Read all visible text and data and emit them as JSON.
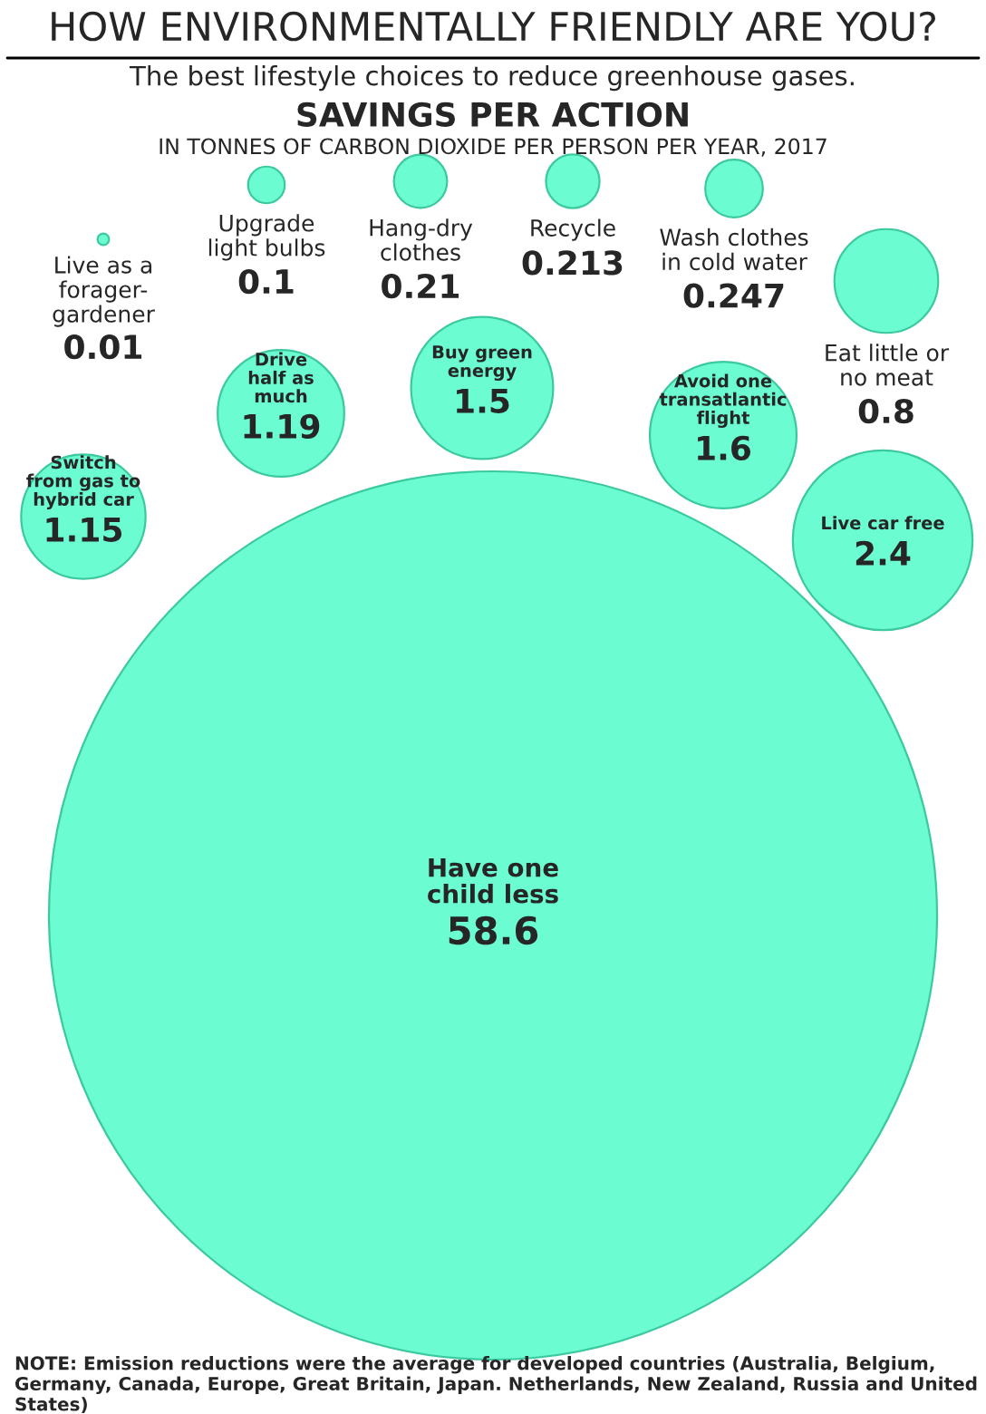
{
  "chart_data": {
    "type": "other",
    "title": "HOW ENVIRONMENTALLY FRIENDLY ARE YOU?",
    "subtitle": "The best lifestyle choices to reduce greenhouse gases.",
    "categories": [
      "Live as a\nforager-\ngardener",
      "Upgrade\nlight bulbs",
      "Hang-dry\nclothes",
      "Recycle",
      "Wash clothes\nin cold water",
      "Eat little or\nno meat",
      "Drive\nhalf as\nmuch",
      "Buy green\nenergy",
      "Avoid one\ntransatlantic\nflight",
      "Switch\nfrom gas to\nhybrid car",
      "Live car free",
      "Have one\nchild less"
    ],
    "values": [
      0.01,
      0.1,
      0.21,
      0.213,
      0.247,
      0.8,
      1.19,
      1.5,
      1.6,
      1.15,
      2.4,
      58.6
    ],
    "color": "#6cfcd2",
    "data_labels": true,
    "annotations": [
      "SAVINGS PER ACTION",
      "IN TONNES OF CARBON DIOXIDE PER PERSON PER YEAR, 2017",
      "NOTE: Emission reductions were the average for developed countries (Australia, Belgium, Germany, Canada, Europe, Great Britain, Japan. Netherlands, New Zealand, Russia and United States)"
    ]
  }
}
